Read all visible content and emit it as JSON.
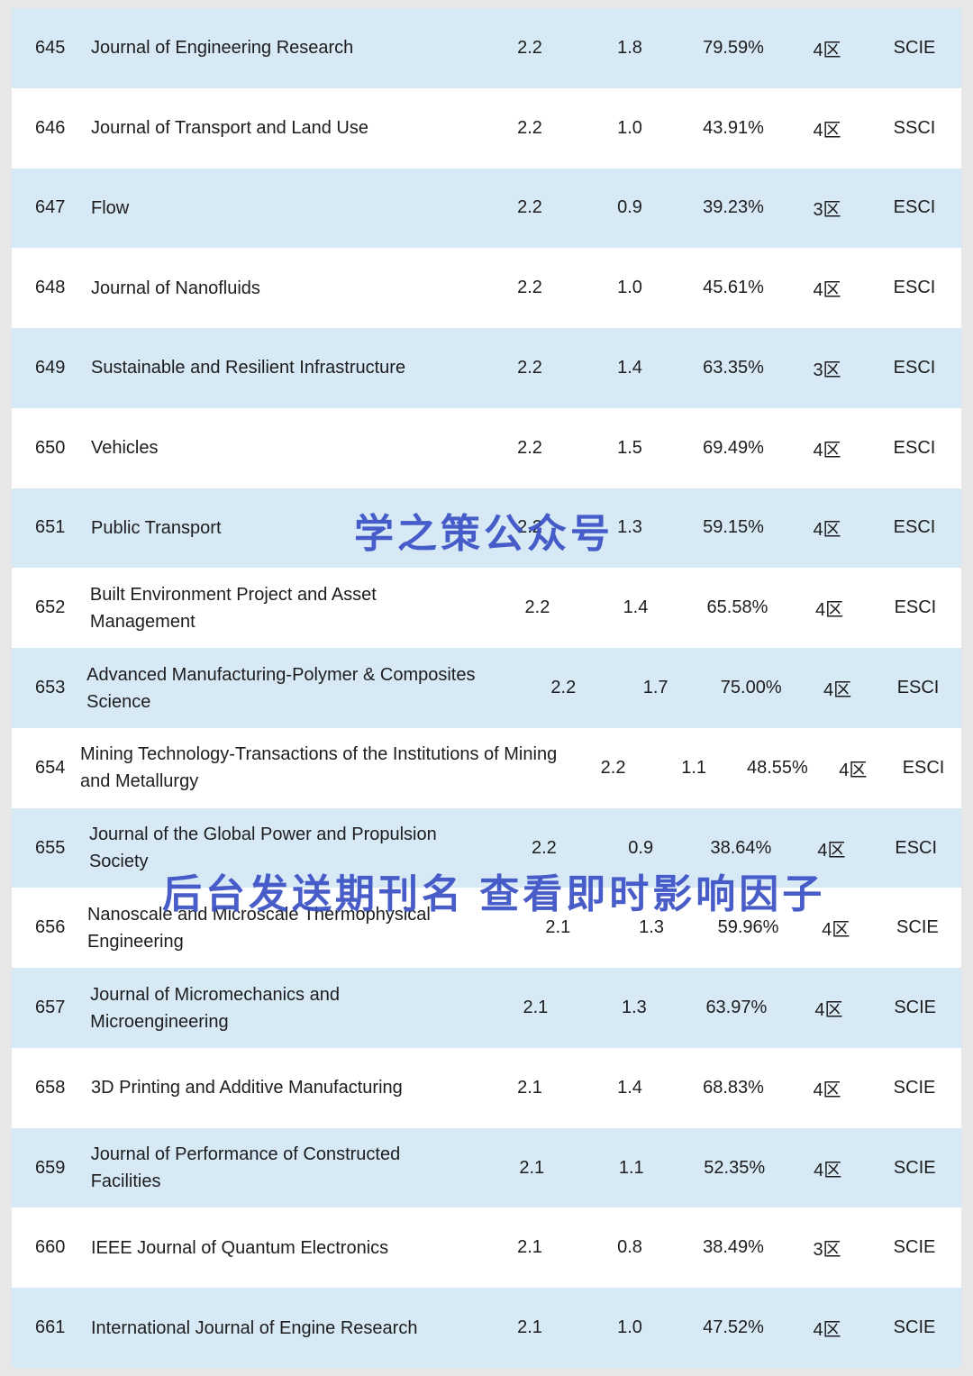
{
  "watermarks": {
    "center": "学之策公众号",
    "bottom": "后台发送期刊名 查看即时影响因子"
  },
  "table": {
    "rows": [
      {
        "rank": "645",
        "journal": "Journal of Engineering Research",
        "impact_factor": "2.2",
        "metric2": "1.8",
        "percentile": "79.59%",
        "partition": "4区",
        "index": "SCIE"
      },
      {
        "rank": "646",
        "journal": "Journal of Transport and Land Use",
        "impact_factor": "2.2",
        "metric2": "1.0",
        "percentile": "43.91%",
        "partition": "4区",
        "index": "SSCI"
      },
      {
        "rank": "647",
        "journal": "Flow",
        "impact_factor": "2.2",
        "metric2": "0.9",
        "percentile": "39.23%",
        "partition": "3区",
        "index": "ESCI"
      },
      {
        "rank": "648",
        "journal": "Journal of Nanofluids",
        "impact_factor": "2.2",
        "metric2": "1.0",
        "percentile": "45.61%",
        "partition": "4区",
        "index": "ESCI"
      },
      {
        "rank": "649",
        "journal": "Sustainable and Resilient Infrastructure",
        "impact_factor": "2.2",
        "metric2": "1.4",
        "percentile": "63.35%",
        "partition": "3区",
        "index": "ESCI"
      },
      {
        "rank": "650",
        "journal": "Vehicles",
        "impact_factor": "2.2",
        "metric2": "1.5",
        "percentile": "69.49%",
        "partition": "4区",
        "index": "ESCI"
      },
      {
        "rank": "651",
        "journal": "Public Transport",
        "impact_factor": "2.2",
        "metric2": "1.3",
        "percentile": "59.15%",
        "partition": "4区",
        "index": "ESCI"
      },
      {
        "rank": "652",
        "journal": "Built Environment Project and Asset Management",
        "impact_factor": "2.2",
        "metric2": "1.4",
        "percentile": "65.58%",
        "partition": "4区",
        "index": "ESCI"
      },
      {
        "rank": "653",
        "journal": "Advanced Manufacturing-Polymer & Composites Science",
        "impact_factor": "2.2",
        "metric2": "1.7",
        "percentile": "75.00%",
        "partition": "4区",
        "index": "ESCI"
      },
      {
        "rank": "654",
        "journal": "Mining Technology-Transactions of the Institutions of Mining and Metallurgy",
        "impact_factor": "2.2",
        "metric2": "1.1",
        "percentile": "48.55%",
        "partition": "4区",
        "index": "ESCI"
      },
      {
        "rank": "655",
        "journal": "Journal of the Global Power and Propulsion Society",
        "impact_factor": "2.2",
        "metric2": "0.9",
        "percentile": "38.64%",
        "partition": "4区",
        "index": "ESCI"
      },
      {
        "rank": "656",
        "journal": "Nanoscale and Microscale Thermophysical Engineering",
        "impact_factor": "2.1",
        "metric2": "1.3",
        "percentile": "59.96%",
        "partition": "4区",
        "index": "SCIE"
      },
      {
        "rank": "657",
        "journal": "Journal of Micromechanics and Microengineering",
        "impact_factor": "2.1",
        "metric2": "1.3",
        "percentile": "63.97%",
        "partition": "4区",
        "index": "SCIE"
      },
      {
        "rank": "658",
        "journal": "3D Printing and Additive Manufacturing",
        "impact_factor": "2.1",
        "metric2": "1.4",
        "percentile": "68.83%",
        "partition": "4区",
        "index": "SCIE"
      },
      {
        "rank": "659",
        "journal": "Journal of Performance of Constructed Facilities",
        "impact_factor": "2.1",
        "metric2": "1.1",
        "percentile": "52.35%",
        "partition": "4区",
        "index": "SCIE"
      },
      {
        "rank": "660",
        "journal": "IEEE Journal of Quantum Electronics",
        "impact_factor": "2.1",
        "metric2": "0.8",
        "percentile": "38.49%",
        "partition": "3区",
        "index": "SCIE"
      },
      {
        "rank": "661",
        "journal": "International Journal of Engine Research",
        "impact_factor": "2.1",
        "metric2": "1.0",
        "percentile": "47.52%",
        "partition": "4区",
        "index": "SCIE"
      }
    ]
  }
}
